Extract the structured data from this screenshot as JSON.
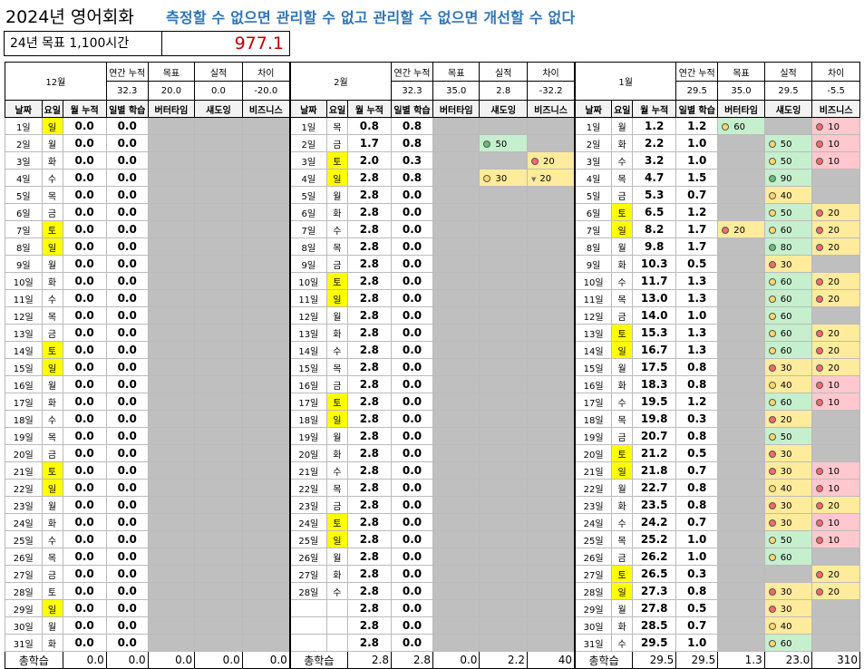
{
  "title": "2024년 영어회화",
  "subtitle": "측정할 수 없으면 관리할 수 없고 관리할 수 없으면 개선할 수 없다",
  "goal": {
    "label": "24년 목표 1,100시간",
    "value": "977.1"
  },
  "headers": {
    "annual": "연간 누적",
    "target": "목표",
    "actual": "실적",
    "diff": "차이",
    "date": "날짜",
    "weekday": "요일",
    "month_cum": "월 누적",
    "daily": "일별 학습",
    "vetter": "버터타임",
    "shadow": "섀도잉",
    "business": "비즈니스",
    "total": "총학습"
  },
  "months": [
    {
      "name": "12월",
      "annual": "32.3",
      "target": "20.0",
      "actual": "0.0",
      "diff": "-20.0",
      "rows": [
        [
          "1일",
          "일",
          "0.0",
          "0.0",
          "",
          "",
          ""
        ],
        [
          "2일",
          "월",
          "0.0",
          "0.0",
          "",
          "",
          ""
        ],
        [
          "3일",
          "화",
          "0.0",
          "0.0",
          "",
          "",
          ""
        ],
        [
          "4일",
          "수",
          "0.0",
          "0.0",
          "",
          "",
          ""
        ],
        [
          "5일",
          "목",
          "0.0",
          "0.0",
          "",
          "",
          ""
        ],
        [
          "6일",
          "금",
          "0.0",
          "0.0",
          "",
          "",
          ""
        ],
        [
          "7일",
          "토",
          "0.0",
          "0.0",
          "",
          "",
          ""
        ],
        [
          "8일",
          "일",
          "0.0",
          "0.0",
          "",
          "",
          ""
        ],
        [
          "9일",
          "월",
          "0.0",
          "0.0",
          "",
          "",
          ""
        ],
        [
          "10일",
          "화",
          "0.0",
          "0.0",
          "",
          "",
          ""
        ],
        [
          "11일",
          "수",
          "0.0",
          "0.0",
          "",
          "",
          ""
        ],
        [
          "12일",
          "목",
          "0.0",
          "0.0",
          "",
          "",
          ""
        ],
        [
          "13일",
          "금",
          "0.0",
          "0.0",
          "",
          "",
          ""
        ],
        [
          "14일",
          "토",
          "0.0",
          "0.0",
          "",
          "",
          ""
        ],
        [
          "15일",
          "일",
          "0.0",
          "0.0",
          "",
          "",
          ""
        ],
        [
          "16일",
          "월",
          "0.0",
          "0.0",
          "",
          "",
          ""
        ],
        [
          "17일",
          "화",
          "0.0",
          "0.0",
          "",
          "",
          ""
        ],
        [
          "18일",
          "수",
          "0.0",
          "0.0",
          "",
          "",
          ""
        ],
        [
          "19일",
          "목",
          "0.0",
          "0.0",
          "",
          "",
          ""
        ],
        [
          "20일",
          "금",
          "0.0",
          "0.0",
          "",
          "",
          ""
        ],
        [
          "21일",
          "토",
          "0.0",
          "0.0",
          "",
          "",
          ""
        ],
        [
          "22일",
          "일",
          "0.0",
          "0.0",
          "",
          "",
          ""
        ],
        [
          "23일",
          "월",
          "0.0",
          "0.0",
          "",
          "",
          ""
        ],
        [
          "24일",
          "화",
          "0.0",
          "0.0",
          "",
          "",
          ""
        ],
        [
          "25일",
          "수",
          "0.0",
          "0.0",
          "",
          "",
          ""
        ],
        [
          "26일",
          "목",
          "0.0",
          "0.0",
          "",
          "",
          ""
        ],
        [
          "27일",
          "금",
          "0.0",
          "0.0",
          "",
          "",
          ""
        ],
        [
          "28일",
          "토",
          "0.0",
          "0.0",
          "",
          "",
          ""
        ],
        [
          "29일",
          "일",
          "0.0",
          "0.0",
          "",
          "",
          ""
        ],
        [
          "30일",
          "월",
          "0.0",
          "0.0",
          "",
          "",
          ""
        ],
        [
          "31일",
          "화",
          "0.0",
          "0.0",
          "",
          "",
          ""
        ]
      ],
      "totals": [
        "0.0",
        "0.0",
        "0.0",
        "0.0",
        "0.0"
      ]
    },
    {
      "name": "2월",
      "annual": "32.3",
      "target": "35.0",
      "actual": "2.8",
      "diff": "-32.2",
      "rows": [
        [
          "1일",
          "목",
          "0.8",
          "0.8",
          "",
          "",
          ""
        ],
        [
          "2일",
          "금",
          "1.7",
          "0.8",
          "",
          "50",
          ""
        ],
        [
          "3일",
          "토",
          "2.0",
          "0.3",
          "",
          "",
          "20"
        ],
        [
          "4일",
          "일",
          "2.8",
          "0.8",
          "",
          "30",
          "20"
        ],
        [
          "5일",
          "월",
          "2.8",
          "0.0",
          "",
          "",
          ""
        ],
        [
          "6일",
          "화",
          "2.8",
          "0.0",
          "",
          "",
          ""
        ],
        [
          "7일",
          "수",
          "2.8",
          "0.0",
          "",
          "",
          ""
        ],
        [
          "8일",
          "목",
          "2.8",
          "0.0",
          "",
          "",
          ""
        ],
        [
          "9일",
          "금",
          "2.8",
          "0.0",
          "",
          "",
          ""
        ],
        [
          "10일",
          "토",
          "2.8",
          "0.0",
          "",
          "",
          ""
        ],
        [
          "11일",
          "일",
          "2.8",
          "0.0",
          "",
          "",
          ""
        ],
        [
          "12일",
          "월",
          "2.8",
          "0.0",
          "",
          "",
          ""
        ],
        [
          "13일",
          "화",
          "2.8",
          "0.0",
          "",
          "",
          ""
        ],
        [
          "14일",
          "수",
          "2.8",
          "0.0",
          "",
          "",
          ""
        ],
        [
          "15일",
          "목",
          "2.8",
          "0.0",
          "",
          "",
          ""
        ],
        [
          "16일",
          "금",
          "2.8",
          "0.0",
          "",
          "",
          ""
        ],
        [
          "17일",
          "토",
          "2.8",
          "0.0",
          "",
          "",
          ""
        ],
        [
          "18일",
          "일",
          "2.8",
          "0.0",
          "",
          "",
          ""
        ],
        [
          "19일",
          "월",
          "2.8",
          "0.0",
          "",
          "",
          ""
        ],
        [
          "20일",
          "화",
          "2.8",
          "0.0",
          "",
          "",
          ""
        ],
        [
          "21일",
          "수",
          "2.8",
          "0.0",
          "",
          "",
          ""
        ],
        [
          "22일",
          "목",
          "2.8",
          "0.0",
          "",
          "",
          ""
        ],
        [
          "23일",
          "금",
          "2.8",
          "0.0",
          "",
          "",
          ""
        ],
        [
          "24일",
          "토",
          "2.8",
          "0.0",
          "",
          "",
          ""
        ],
        [
          "25일",
          "일",
          "2.8",
          "0.0",
          "",
          "",
          ""
        ],
        [
          "26일",
          "월",
          "2.8",
          "0.0",
          "",
          "",
          ""
        ],
        [
          "27일",
          "화",
          "2.8",
          "0.0",
          "",
          "",
          ""
        ],
        [
          "28일",
          "수",
          "2.8",
          "0.0",
          "",
          "",
          ""
        ],
        [
          "",
          "",
          "2.8",
          "0.0",
          "",
          "",
          ""
        ],
        [
          "",
          "",
          "2.8",
          "0.0",
          "",
          "",
          ""
        ],
        [
          "",
          "",
          "2.8",
          "0.0",
          "",
          "",
          ""
        ]
      ],
      "first_shadow": "50",
      "totals": [
        "2.8",
        "2.8",
        "0.0",
        "2.2",
        "40"
      ]
    },
    {
      "name": "1월",
      "annual": "29.5",
      "target": "35.0",
      "actual": "29.5",
      "diff": "-5.5",
      "rows": [
        [
          "1일",
          "월",
          "1.2",
          "1.2",
          "60",
          "",
          "10"
        ],
        [
          "2일",
          "화",
          "2.2",
          "1.0",
          "",
          "50",
          "10"
        ],
        [
          "3일",
          "수",
          "3.2",
          "1.0",
          "",
          "50",
          "10"
        ],
        [
          "4일",
          "목",
          "4.7",
          "1.5",
          "",
          "90",
          ""
        ],
        [
          "5일",
          "금",
          "5.3",
          "0.7",
          "",
          "40",
          ""
        ],
        [
          "6일",
          "토",
          "6.5",
          "1.2",
          "",
          "50",
          "20"
        ],
        [
          "7일",
          "일",
          "8.2",
          "1.7",
          "20",
          "60",
          "20"
        ],
        [
          "8일",
          "월",
          "9.8",
          "1.7",
          "",
          "80",
          "20"
        ],
        [
          "9일",
          "화",
          "10.3",
          "0.5",
          "",
          "30",
          ""
        ],
        [
          "10일",
          "수",
          "11.7",
          "1.3",
          "",
          "60",
          "20"
        ],
        [
          "11일",
          "목",
          "13.0",
          "1.3",
          "",
          "60",
          "20"
        ],
        [
          "12일",
          "금",
          "14.0",
          "1.0",
          "",
          "60",
          ""
        ],
        [
          "13일",
          "토",
          "15.3",
          "1.3",
          "",
          "60",
          "20"
        ],
        [
          "14일",
          "일",
          "16.7",
          "1.3",
          "",
          "60",
          "20"
        ],
        [
          "15일",
          "월",
          "17.5",
          "0.8",
          "",
          "30",
          "20"
        ],
        [
          "16일",
          "화",
          "18.3",
          "0.8",
          "",
          "40",
          "10"
        ],
        [
          "17일",
          "수",
          "19.5",
          "1.2",
          "",
          "60",
          "10"
        ],
        [
          "18일",
          "목",
          "19.8",
          "0.3",
          "",
          "20",
          ""
        ],
        [
          "19일",
          "금",
          "20.7",
          "0.8",
          "",
          "50",
          ""
        ],
        [
          "20일",
          "토",
          "21.2",
          "0.5",
          "",
          "30",
          ""
        ],
        [
          "21일",
          "일",
          "21.8",
          "0.7",
          "",
          "30",
          "10"
        ],
        [
          "22일",
          "월",
          "22.7",
          "0.8",
          "",
          "40",
          "10"
        ],
        [
          "23일",
          "화",
          "23.5",
          "0.8",
          "",
          "30",
          "20"
        ],
        [
          "24일",
          "수",
          "24.2",
          "0.7",
          "",
          "30",
          "10"
        ],
        [
          "25일",
          "목",
          "25.2",
          "1.0",
          "",
          "50",
          "10"
        ],
        [
          "26일",
          "금",
          "26.2",
          "1.0",
          "",
          "60",
          ""
        ],
        [
          "27일",
          "토",
          "26.5",
          "0.3",
          "",
          "",
          "20"
        ],
        [
          "28일",
          "일",
          "27.3",
          "0.8",
          "",
          "30",
          "20"
        ],
        [
          "29일",
          "월",
          "27.8",
          "0.5",
          "",
          "30",
          ""
        ],
        [
          "30일",
          "화",
          "28.5",
          "0.7",
          "",
          "40",
          ""
        ],
        [
          "31일",
          "수",
          "29.5",
          "1.0",
          "",
          "60",
          ""
        ]
      ],
      "totals": [
        "29.5",
        "29.5",
        "1.3",
        "23.0",
        "310"
      ]
    }
  ]
}
